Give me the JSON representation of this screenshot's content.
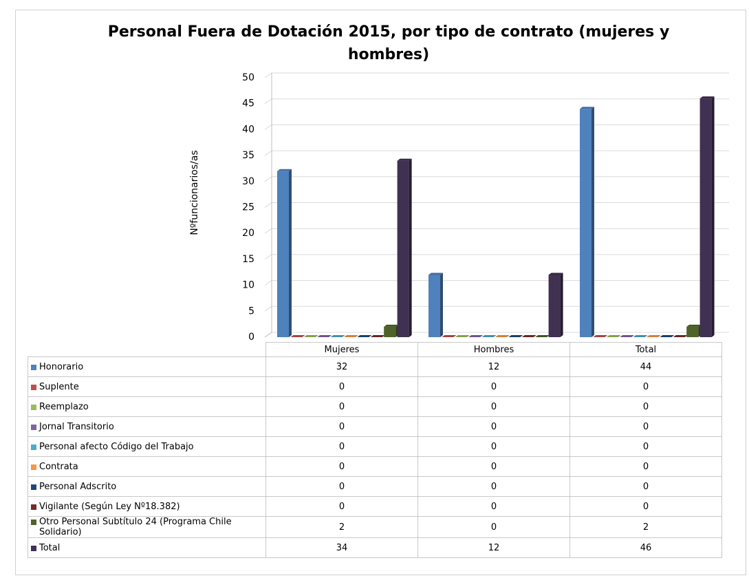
{
  "chart_data": {
    "type": "bar",
    "title": "Personal Fuera de Dotación 2015, por tipo de contrato (mujeres y hombres)",
    "y_label": "Nºfuncionarios/as",
    "categories": [
      "Mujeres",
      "Hombres",
      "Total"
    ],
    "ylim": [
      0,
      50
    ],
    "yticks": [
      0,
      5,
      10,
      15,
      20,
      25,
      30,
      35,
      40,
      45,
      50
    ],
    "grid": true,
    "series": [
      {
        "name": "Honorario",
        "color": "#4f81bd",
        "values": [
          32,
          12,
          44
        ]
      },
      {
        "name": "Suplente",
        "color": "#c0504d",
        "values": [
          0,
          0,
          0
        ]
      },
      {
        "name": "Reemplazo",
        "color": "#9bbb59",
        "values": [
          0,
          0,
          0
        ]
      },
      {
        "name": "Jornal Transitorio",
        "color": "#8064a2",
        "values": [
          0,
          0,
          0
        ]
      },
      {
        "name": "Personal afecto Código del Trabajo",
        "color": "#4bacc6",
        "values": [
          0,
          0,
          0
        ]
      },
      {
        "name": "Contrata",
        "color": "#f79646",
        "values": [
          0,
          0,
          0
        ]
      },
      {
        "name": "Personal Adscrito",
        "color": "#1f497d",
        "values": [
          0,
          0,
          0
        ]
      },
      {
        "name": "Vigilante (Según Ley Nº18.382)",
        "color": "#772c2a",
        "values": [
          0,
          0,
          0
        ]
      },
      {
        "name": "Otro Personal Subtítulo 24 (Programa Chile Solidario)",
        "color": "#4f6228",
        "values": [
          2,
          0,
          2
        ]
      },
      {
        "name": "Total",
        "color": "#403152",
        "values": [
          34,
          12,
          46
        ]
      }
    ]
  }
}
